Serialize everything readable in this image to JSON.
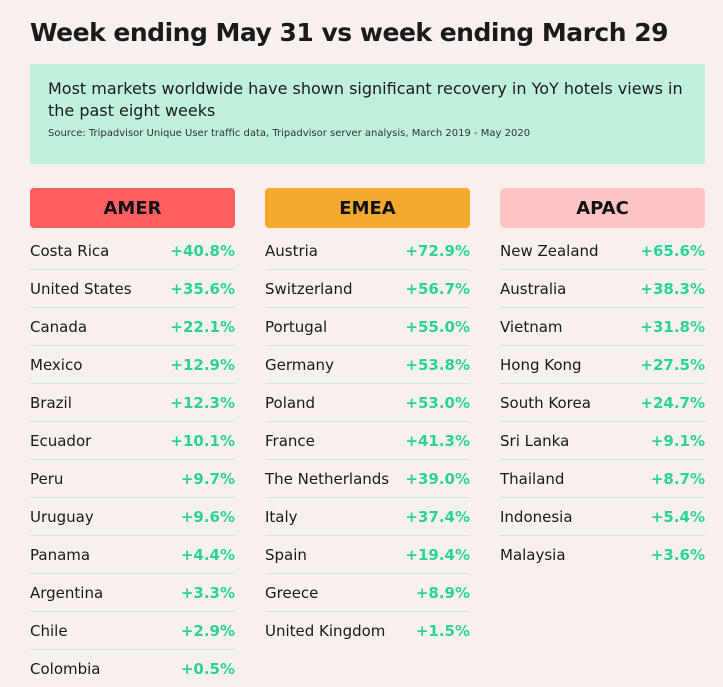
{
  "title": "Week ending May 31 vs week ending March 29",
  "banner": {
    "headline": "Most markets worldwide have shown significant recovery in YoY hotels views in the past eight weeks",
    "source": "Source: Tripadvisor Unique User traffic data, Tripadvisor server analysis, March 2019 - May 2020"
  },
  "colors": {
    "amer": "#ff5f5f",
    "emea": "#f2a92c",
    "apac": "#ffc4c4",
    "value": "#2bd39a",
    "banner": "#bff0dc"
  },
  "chart_data": {
    "type": "table",
    "columns": [
      {
        "region": "AMER",
        "rows": [
          {
            "country": "Costa Rica",
            "value": "+40.8%"
          },
          {
            "country": "United States",
            "value": "+35.6%"
          },
          {
            "country": "Canada",
            "value": "+22.1%"
          },
          {
            "country": "Mexico",
            "value": "+12.9%"
          },
          {
            "country": "Brazil",
            "value": "+12.3%"
          },
          {
            "country": "Ecuador",
            "value": "+10.1%"
          },
          {
            "country": "Peru",
            "value": "+9.7%"
          },
          {
            "country": "Uruguay",
            "value": "+9.6%"
          },
          {
            "country": "Panama",
            "value": "+4.4%"
          },
          {
            "country": "Argentina",
            "value": "+3.3%"
          },
          {
            "country": "Chile",
            "value": "+2.9%"
          },
          {
            "country": "Colombia",
            "value": "+0.5%"
          }
        ]
      },
      {
        "region": "EMEA",
        "rows": [
          {
            "country": "Austria",
            "value": "+72.9%"
          },
          {
            "country": "Switzerland",
            "value": "+56.7%"
          },
          {
            "country": "Portugal",
            "value": "+55.0%"
          },
          {
            "country": "Germany",
            "value": "+53.8%"
          },
          {
            "country": "Poland",
            "value": "+53.0%"
          },
          {
            "country": "France",
            "value": "+41.3%"
          },
          {
            "country": "The Netherlands",
            "value": "+39.0%"
          },
          {
            "country": "Italy",
            "value": "+37.4%"
          },
          {
            "country": "Spain",
            "value": "+19.4%"
          },
          {
            "country": "Greece",
            "value": "+8.9%"
          },
          {
            "country": "United Kingdom",
            "value": "+1.5%"
          }
        ]
      },
      {
        "region": "APAC",
        "rows": [
          {
            "country": "New Zealand",
            "value": "+65.6%"
          },
          {
            "country": "Australia",
            "value": "+38.3%"
          },
          {
            "country": "Vietnam",
            "value": "+31.8%"
          },
          {
            "country": "Hong Kong",
            "value": "+27.5%"
          },
          {
            "country": "South Korea",
            "value": "+24.7%"
          },
          {
            "country": "Sri Lanka",
            "value": "+9.1%"
          },
          {
            "country": "Thailand",
            "value": "+8.7%"
          },
          {
            "country": "Indonesia",
            "value": "+5.4%"
          },
          {
            "country": "Malaysia",
            "value": "+3.6%"
          }
        ]
      }
    ]
  }
}
